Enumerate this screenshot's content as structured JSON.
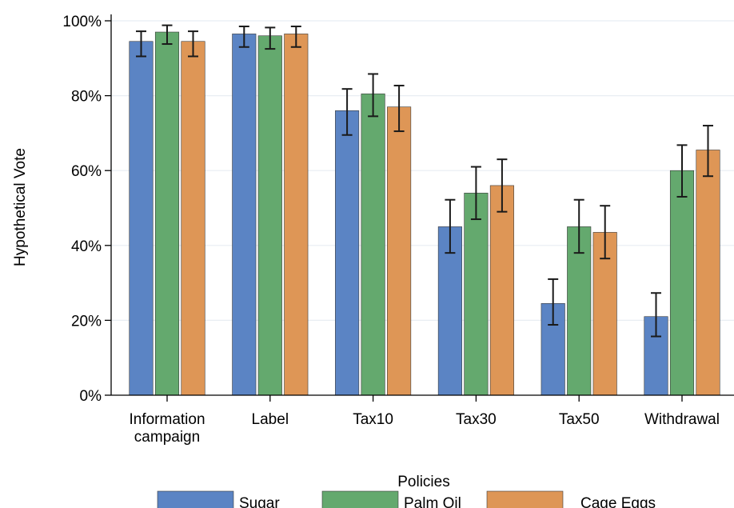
{
  "chart_data": {
    "type": "bar",
    "title": "",
    "xlabel": "Policies",
    "ylabel": "Hypothetical Vote",
    "ylim": [
      0,
      100
    ],
    "yticks": [
      0,
      20,
      40,
      60,
      80,
      100
    ],
    "ytick_labels": [
      "0%",
      "20%",
      "40%",
      "60%",
      "80%",
      "100%"
    ],
    "grid": true,
    "legend_position": "bottom",
    "categories": [
      [
        "Information",
        "campaign"
      ],
      [
        "Label"
      ],
      [
        "Tax10"
      ],
      [
        "Tax30"
      ],
      [
        "Tax50"
      ],
      [
        "Withdrawal"
      ]
    ],
    "series": [
      {
        "name": "Sugar",
        "color": "#5b84c4",
        "values": [
          94.5,
          96.5,
          76,
          45,
          24.5,
          21
        ],
        "ci_low": [
          90.5,
          93,
          69.5,
          38,
          18.8,
          15.7
        ],
        "ci_high": [
          97.2,
          98.5,
          81.8,
          52.2,
          31,
          27.3
        ]
      },
      {
        "name": "Palm Oil",
        "color": "#64a96e",
        "values": [
          97,
          96,
          80.5,
          54,
          45,
          60
        ],
        "ci_low": [
          93.8,
          92.5,
          74.5,
          47,
          38,
          53
        ],
        "ci_high": [
          98.8,
          98.2,
          85.8,
          61,
          52.2,
          66.8
        ]
      },
      {
        "name": "Cage Eggs",
        "color": "#de9656",
        "values": [
          94.5,
          96.5,
          77,
          56,
          43.5,
          65.5
        ],
        "ci_low": [
          90.5,
          93,
          70.5,
          49,
          36.5,
          58.5
        ],
        "ci_high": [
          97.2,
          98.5,
          82.7,
          63,
          50.6,
          72
        ]
      }
    ]
  }
}
